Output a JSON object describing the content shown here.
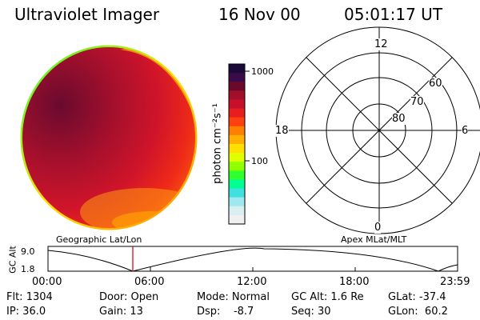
{
  "header": {
    "instrument": "Ultraviolet Imager",
    "date": "16 Nov 00",
    "time": "05:01:17 UT"
  },
  "colorbar": {
    "unit": "photon cm⁻²s⁻¹",
    "tick_high": "1000",
    "tick_low": "100",
    "colors": [
      "#1a0a3a",
      "#3a0a4a",
      "#6a0a2a",
      "#a0102a",
      "#c8102a",
      "#e81e1e",
      "#ff4010",
      "#ff8000",
      "#ffb000",
      "#ffe000",
      "#e0ff00",
      "#90ff00",
      "#30ff30",
      "#00ff90",
      "#40e0e0",
      "#a0e8f0",
      "#d8eef0",
      "#f0f0f0"
    ]
  },
  "polar": {
    "labels": {
      "top": "12",
      "bottom": "0",
      "left": "18",
      "right": "6",
      "r60": "60",
      "r70": "70",
      "r80": "80"
    }
  },
  "timeline": {
    "left_label": "Geographic Lat/Lon",
    "right_label": "Apex MLat/MLT",
    "axis_title": "GC Alt",
    "y_top": "9.0",
    "y_bottom": "1.8",
    "ticks": [
      "00:00",
      "06:00",
      "12:00",
      "18:00",
      "23:59"
    ]
  },
  "info": {
    "flt": "Flt: 1304",
    "ip": "IP: 36.0",
    "door": "Door: Open",
    "gain": "Gain: 13",
    "mode": "Mode: Normal",
    "dsp": "Dsp:    -8.7",
    "gcalt": "GC Alt: 1.6 Re",
    "seq": "Seq: 30",
    "glat": "GLat: -37.4",
    "glon": "GLon:  60.2"
  }
}
